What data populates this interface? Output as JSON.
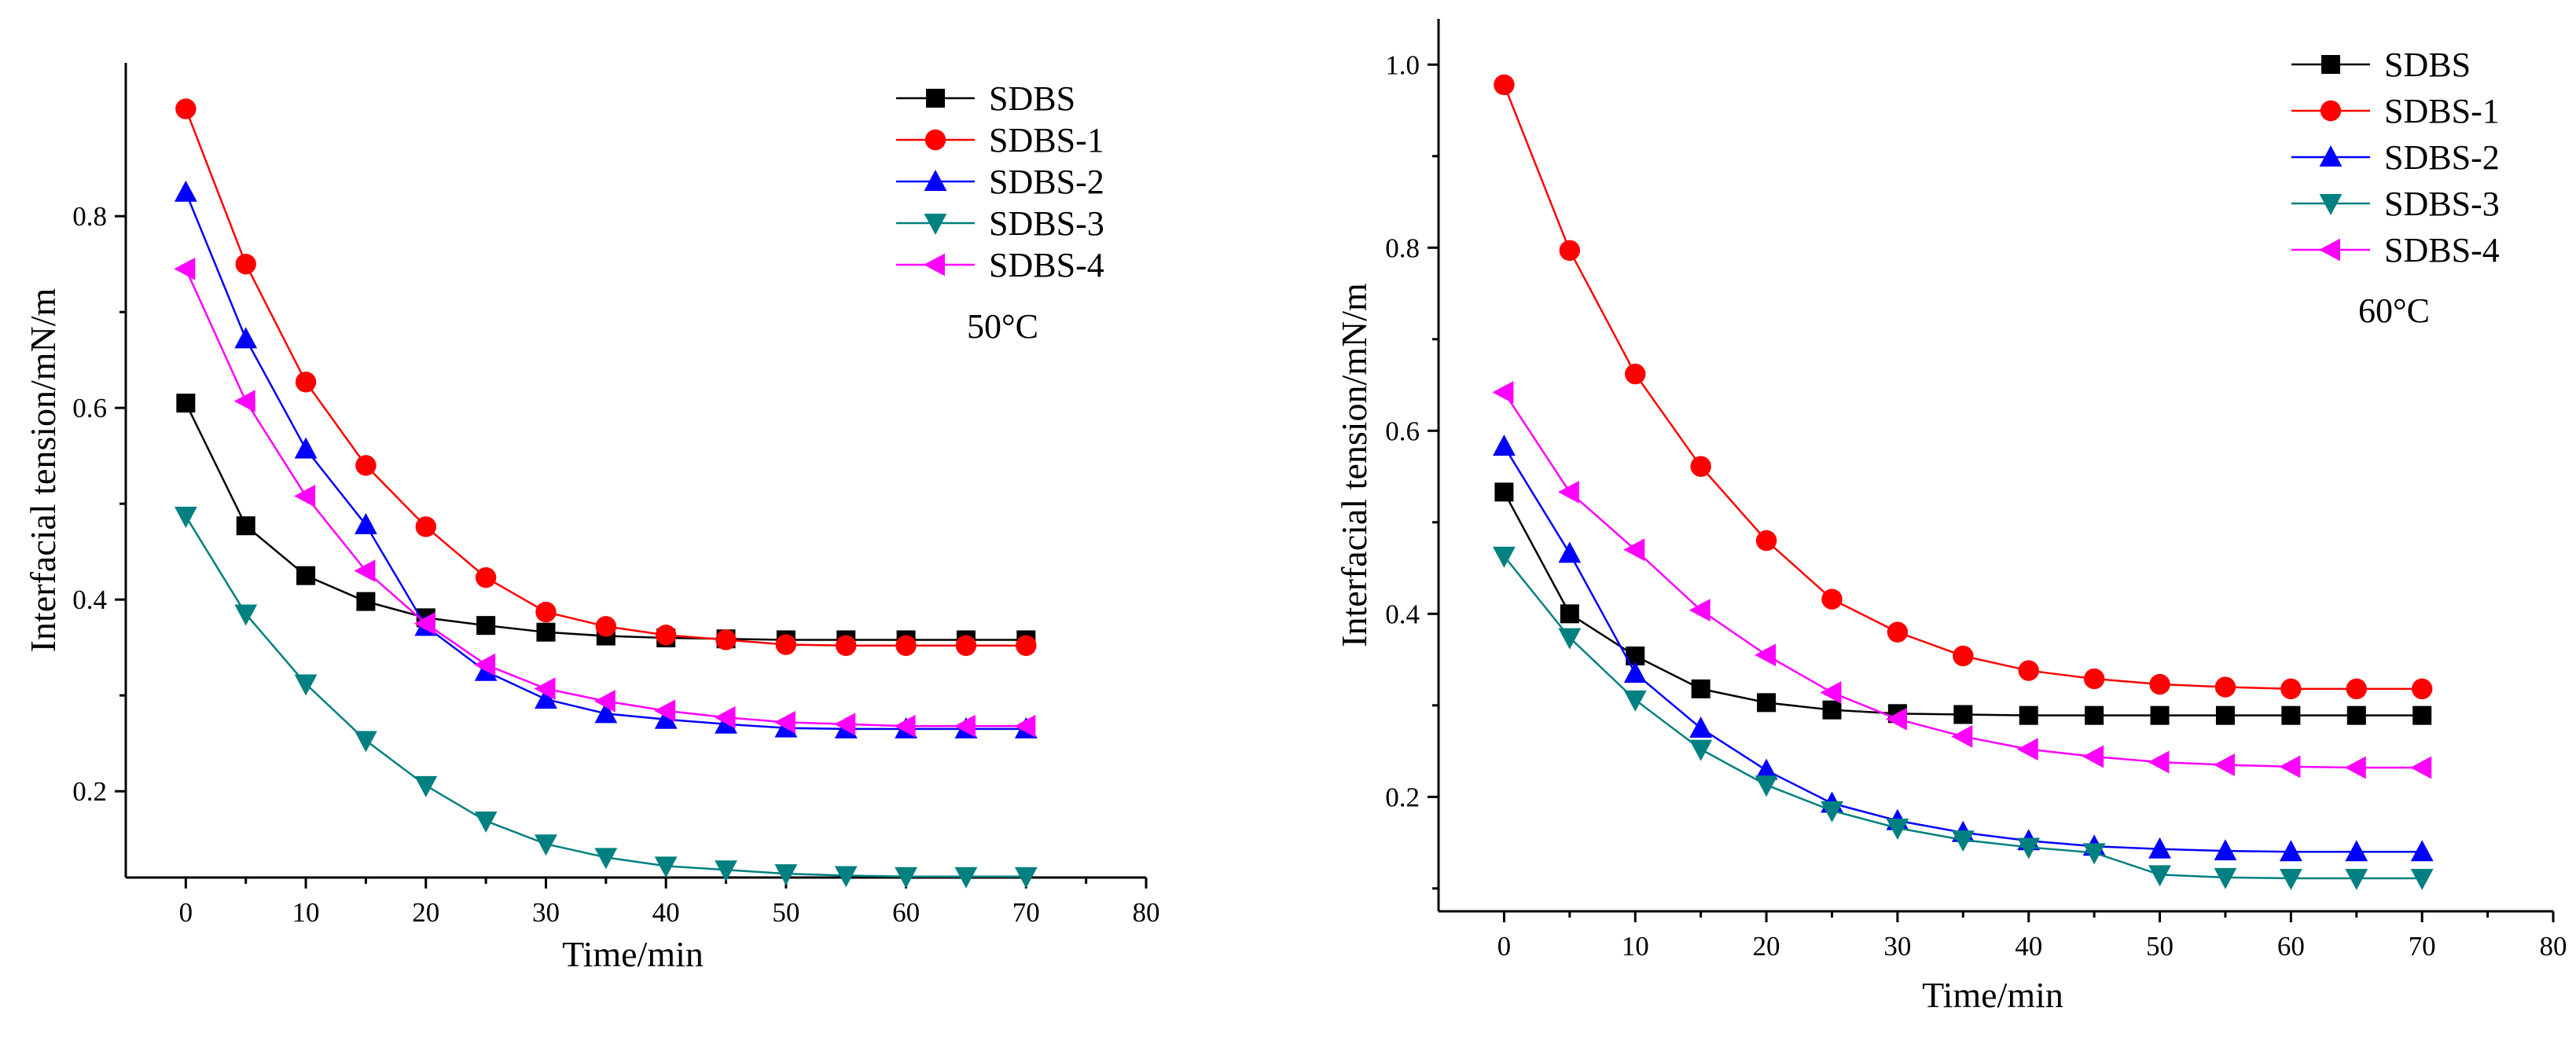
{
  "chart_data": [
    {
      "type": "line",
      "x": [
        0,
        5,
        10,
        15,
        20,
        25,
        30,
        35,
        40,
        45,
        50,
        55,
        60,
        65,
        70
      ],
      "xlim": [
        -5,
        80
      ],
      "ylim": [
        0.11,
        0.96
      ],
      "xticks": [
        0,
        10,
        20,
        30,
        40,
        50,
        60,
        70,
        80
      ],
      "yticks": [
        0.2,
        0.4,
        0.6,
        0.8
      ],
      "xlabel": "Time/min",
      "ylabel": "Interfacial tension/mN/m",
      "annotation": "50°C",
      "legend_position": "top-right",
      "series": [
        {
          "name": "SDBS",
          "color": "#000000",
          "marker": "square",
          "values": [
            0.605,
            0.477,
            0.425,
            0.398,
            0.381,
            0.373,
            0.366,
            0.362,
            0.36,
            0.359,
            0.358,
            0.358,
            0.358,
            0.358,
            0.358
          ]
        },
        {
          "name": "SDBS-1",
          "color": "#ff0000",
          "marker": "circle",
          "values": [
            0.912,
            0.75,
            0.627,
            0.54,
            0.476,
            0.423,
            0.387,
            0.372,
            0.363,
            0.358,
            0.353,
            0.352,
            0.352,
            0.352,
            0.352
          ]
        },
        {
          "name": "SDBS-2",
          "color": "#0000ff",
          "marker": "triangle-up",
          "values": [
            0.825,
            0.672,
            0.557,
            0.478,
            0.372,
            0.325,
            0.296,
            0.281,
            0.275,
            0.27,
            0.266,
            0.265,
            0.265,
            0.265,
            0.265
          ]
        },
        {
          "name": "SDBS-3",
          "color": "#008080",
          "marker": "triangle-down",
          "values": [
            0.487,
            0.385,
            0.312,
            0.253,
            0.206,
            0.169,
            0.145,
            0.131,
            0.122,
            0.118,
            0.114,
            0.112,
            0.111,
            0.111,
            0.111
          ]
        },
        {
          "name": "SDBS-4",
          "color": "#ff00ff",
          "marker": "triangle-left",
          "values": [
            0.745,
            0.607,
            0.508,
            0.43,
            0.375,
            0.332,
            0.307,
            0.294,
            0.284,
            0.277,
            0.272,
            0.27,
            0.268,
            0.268,
            0.268
          ]
        }
      ]
    },
    {
      "type": "line",
      "x": [
        0,
        5,
        10,
        15,
        20,
        25,
        30,
        35,
        40,
        45,
        50,
        55,
        60,
        65,
        70
      ],
      "xlim": [
        -5,
        80
      ],
      "ylim": [
        0.075,
        1.05
      ],
      "xticks": [
        0,
        10,
        20,
        30,
        40,
        50,
        60,
        70,
        80
      ],
      "yticks": [
        0.2,
        0.4,
        0.6,
        0.8,
        1.0
      ],
      "xlabel": "Time/min",
      "ylabel": "Interfacial tension/mN/m",
      "annotation": "60°C",
      "legend_position": "top-right",
      "series": [
        {
          "name": "SDBS",
          "color": "#000000",
          "marker": "square",
          "values": [
            0.533,
            0.4,
            0.354,
            0.318,
            0.303,
            0.295,
            0.291,
            0.29,
            0.289,
            0.289,
            0.289,
            0.289,
            0.289,
            0.289,
            0.289
          ]
        },
        {
          "name": "SDBS-1",
          "color": "#ff0000",
          "marker": "circle",
          "values": [
            0.978,
            0.797,
            0.662,
            0.561,
            0.48,
            0.416,
            0.38,
            0.354,
            0.338,
            0.329,
            0.323,
            0.32,
            0.318,
            0.318,
            0.318
          ]
        },
        {
          "name": "SDBS-2",
          "color": "#0000ff",
          "marker": "triangle-up",
          "values": [
            0.583,
            0.466,
            0.335,
            0.275,
            0.229,
            0.193,
            0.174,
            0.161,
            0.152,
            0.146,
            0.143,
            0.141,
            0.14,
            0.14,
            0.14
          ]
        },
        {
          "name": "SDBS-3",
          "color": "#008080",
          "marker": "triangle-down",
          "values": [
            0.463,
            0.374,
            0.306,
            0.252,
            0.213,
            0.185,
            0.166,
            0.153,
            0.145,
            0.139,
            0.115,
            0.112,
            0.111,
            0.111,
            0.111
          ]
        },
        {
          "name": "SDBS-4",
          "color": "#ff00ff",
          "marker": "triangle-left",
          "values": [
            0.642,
            0.533,
            0.47,
            0.404,
            0.355,
            0.314,
            0.285,
            0.266,
            0.252,
            0.244,
            0.238,
            0.235,
            0.233,
            0.232,
            0.232
          ]
        }
      ]
    }
  ]
}
